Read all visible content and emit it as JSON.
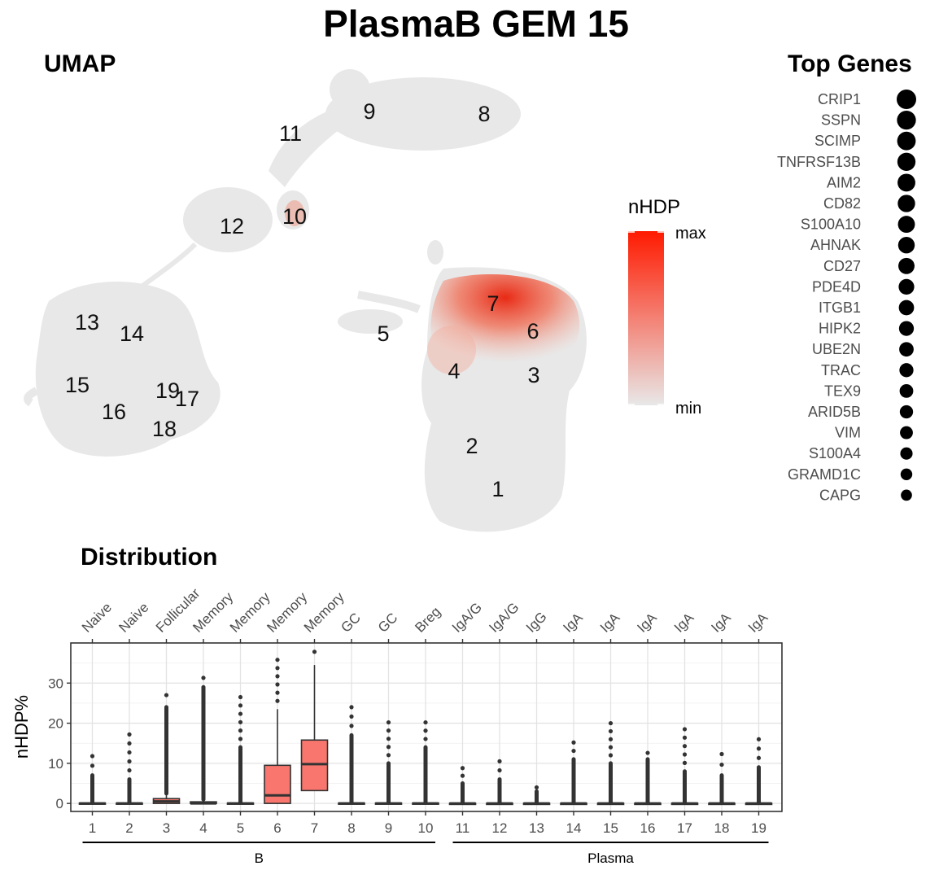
{
  "title": "PlasmaB GEM 15",
  "panels": {
    "umap": "UMAP",
    "top_genes": "Top Genes",
    "distribution": "Distribution"
  },
  "colors": {
    "low": "#e8e8e8",
    "high": "#ff1a00",
    "box_fill": "#f8766d",
    "point": "#333333"
  },
  "legend": {
    "title": "nHDP",
    "max_label": "max",
    "min_label": "min"
  },
  "umap_clusters": [
    "1",
    "2",
    "3",
    "4",
    "5",
    "6",
    "7",
    "8",
    "9",
    "10",
    "11",
    "12",
    "13",
    "14",
    "15",
    "16",
    "17",
    "18",
    "19"
  ],
  "top_genes": [
    {
      "gene": "CRIP1",
      "size": 1.0
    },
    {
      "gene": "SSPN",
      "size": 0.97
    },
    {
      "gene": "SCIMP",
      "size": 0.95
    },
    {
      "gene": "TNFRSF13B",
      "size": 0.93
    },
    {
      "gene": "AIM2",
      "size": 0.91
    },
    {
      "gene": "CD82",
      "size": 0.89
    },
    {
      "gene": "S100A10",
      "size": 0.87
    },
    {
      "gene": "AHNAK",
      "size": 0.85
    },
    {
      "gene": "CD27",
      "size": 0.83
    },
    {
      "gene": "PDE4D",
      "size": 0.8
    },
    {
      "gene": "ITGB1",
      "size": 0.78
    },
    {
      "gene": "HIPK2",
      "size": 0.76
    },
    {
      "gene": "UBE2N",
      "size": 0.74
    },
    {
      "gene": "TRAC",
      "size": 0.72
    },
    {
      "gene": "TEX9",
      "size": 0.7
    },
    {
      "gene": "ARID5B",
      "size": 0.68
    },
    {
      "gene": "VIM",
      "size": 0.66
    },
    {
      "gene": "S100A4",
      "size": 0.63
    },
    {
      "gene": "GRAMD1C",
      "size": 0.6
    },
    {
      "gene": "CAPG",
      "size": 0.57
    }
  ],
  "chart_data": {
    "type": "box",
    "ylabel": "nHDP%",
    "ylim": [
      -2,
      40
    ],
    "yticks": [
      0,
      10,
      20,
      30
    ],
    "categories": [
      "1",
      "2",
      "3",
      "4",
      "5",
      "6",
      "7",
      "8",
      "9",
      "10",
      "11",
      "12",
      "13",
      "14",
      "15",
      "16",
      "17",
      "18",
      "19"
    ],
    "category_labels": [
      "Naive",
      "Naive",
      "Follicular",
      "Memory",
      "Memory",
      "Memory",
      "Memory",
      "GC",
      "GC",
      "Breg",
      "IgA/G",
      "IgA/G",
      "IgG",
      "IgA",
      "IgA",
      "IgA",
      "IgA",
      "IgA",
      "IgA"
    ],
    "groups": [
      {
        "name": "B",
        "from": 1,
        "to": 10
      },
      {
        "name": "Plasma",
        "from": 11,
        "to": 19
      }
    ],
    "boxes": [
      {
        "q1": 0,
        "median": 0,
        "q3": 0.1,
        "whisker_high": 0.3,
        "outlier_max": 11.8,
        "outlier_dense_to": 7
      },
      {
        "q1": 0,
        "median": 0,
        "q3": 0.1,
        "whisker_high": 0.3,
        "outlier_max": 17.2,
        "outlier_dense_to": 6
      },
      {
        "q1": 0,
        "median": 0.5,
        "q3": 1.2,
        "whisker_high": 2.5,
        "outlier_max": 27,
        "outlier_dense_to": 24
      },
      {
        "q1": 0,
        "median": 0,
        "q3": 0.4,
        "whisker_high": 1,
        "outlier_max": 31.3,
        "outlier_dense_to": 29
      },
      {
        "q1": 0,
        "median": 0,
        "q3": 0.1,
        "whisker_high": 0.3,
        "outlier_max": 26.5,
        "outlier_dense_to": 14
      },
      {
        "q1": 0,
        "median": 2,
        "q3": 9.5,
        "whisker_high": 23.5,
        "outlier_max": 35.8,
        "outlier_dense_to": 0
      },
      {
        "q1": 3.2,
        "median": 9.8,
        "q3": 15.8,
        "whisker_high": 34.5,
        "outlier_max": 37.8,
        "outlier_dense_to": 0
      },
      {
        "q1": 0,
        "median": 0,
        "q3": 0.1,
        "whisker_high": 0.3,
        "outlier_max": 24,
        "outlier_dense_to": 17
      },
      {
        "q1": 0,
        "median": 0,
        "q3": 0.1,
        "whisker_high": 0.3,
        "outlier_max": 20.2,
        "outlier_dense_to": 10
      },
      {
        "q1": 0,
        "median": 0,
        "q3": 0.1,
        "whisker_high": 0.3,
        "outlier_max": 20.2,
        "outlier_dense_to": 14
      },
      {
        "q1": 0,
        "median": 0,
        "q3": 0.05,
        "whisker_high": 0.2,
        "outlier_max": 8.8,
        "outlier_dense_to": 5
      },
      {
        "q1": 0,
        "median": 0,
        "q3": 0.05,
        "whisker_high": 0.2,
        "outlier_max": 10.5,
        "outlier_dense_to": 6
      },
      {
        "q1": 0,
        "median": 0,
        "q3": 0.05,
        "whisker_high": 0.2,
        "outlier_max": 4,
        "outlier_dense_to": 3
      },
      {
        "q1": 0,
        "median": 0,
        "q3": 0.05,
        "whisker_high": 0.2,
        "outlier_max": 15.2,
        "outlier_dense_to": 11
      },
      {
        "q1": 0,
        "median": 0,
        "q3": 0.05,
        "whisker_high": 0.2,
        "outlier_max": 20,
        "outlier_dense_to": 10
      },
      {
        "q1": 0,
        "median": 0,
        "q3": 0.05,
        "whisker_high": 0.2,
        "outlier_max": 12.6,
        "outlier_dense_to": 11
      },
      {
        "q1": 0,
        "median": 0,
        "q3": 0.05,
        "whisker_high": 0.2,
        "outlier_max": 18.5,
        "outlier_dense_to": 8
      },
      {
        "q1": 0,
        "median": 0,
        "q3": 0.05,
        "whisker_high": 0.2,
        "outlier_max": 12.3,
        "outlier_dense_to": 7
      },
      {
        "q1": 0,
        "median": 0,
        "q3": 0.05,
        "whisker_high": 0.2,
        "outlier_max": 16,
        "outlier_dense_to": 9
      }
    ]
  }
}
